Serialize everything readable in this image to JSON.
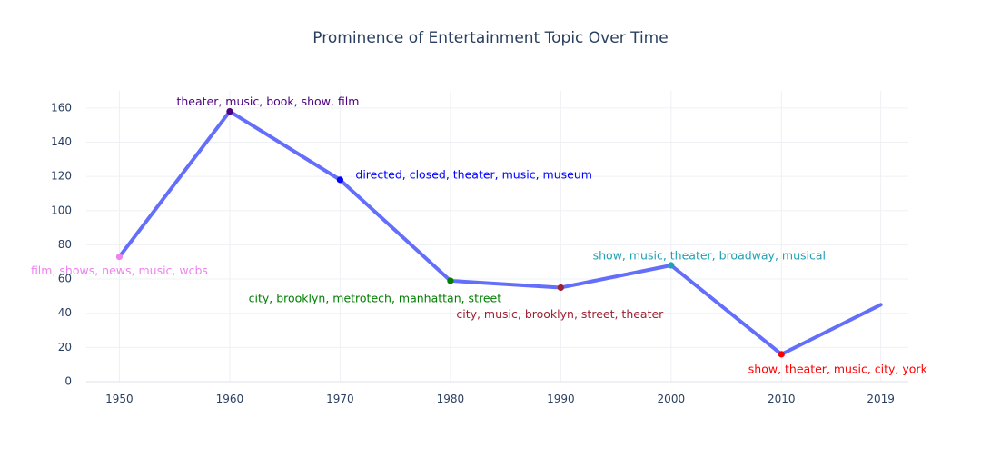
{
  "chart_data": {
    "type": "line",
    "title": "Prominence of Entertainment Topic Over Time",
    "xlabel": "",
    "ylabel": "",
    "x_ticks": [
      "1950",
      "1960",
      "1970",
      "1980",
      "1990",
      "2000",
      "2010",
      "2019"
    ],
    "y_ticks": [
      "0",
      "20",
      "40",
      "60",
      "80",
      "100",
      "120",
      "140",
      "160"
    ],
    "ylim": [
      0,
      170
    ],
    "xlim": [
      1947,
      2021.5
    ],
    "grid": true,
    "legend": "none",
    "line_color": "#636efa",
    "x": [
      1950,
      1960,
      1970,
      1980,
      1990,
      2000,
      2010,
      2019
    ],
    "y": [
      73,
      158,
      118,
      59,
      55,
      68,
      16,
      45
    ],
    "points": [
      {
        "x": 1950,
        "y": 73,
        "label": "film, shows, news, music, wcbs",
        "color": "#ee82ee",
        "label_position": "below-center"
      },
      {
        "x": 1960,
        "y": 158,
        "label": "theater, music, book, show, film",
        "color": "#4b0082",
        "label_position": "above-right"
      },
      {
        "x": 1970,
        "y": 118,
        "label": "directed, closed, theater, music, museum",
        "color": "#0000ff",
        "label_position": "right"
      },
      {
        "x": 1980,
        "y": 59,
        "label": "city, brooklyn, metrotech, manhattan, street",
        "color": "#008000",
        "label_position": "below-left"
      },
      {
        "x": 1990,
        "y": 55,
        "label": "city, music, brooklyn, street, theater",
        "color": "#9b2335",
        "label_position": "below-left"
      },
      {
        "x": 2000,
        "y": 68,
        "label": "show, music, theater, broadway, musical",
        "color": "#1fa0b4",
        "label_position": "above-right"
      },
      {
        "x": 2010,
        "y": 16,
        "label": "show, theater, music, city, york",
        "color": "#ff0000",
        "label_position": "below-right"
      }
    ]
  }
}
